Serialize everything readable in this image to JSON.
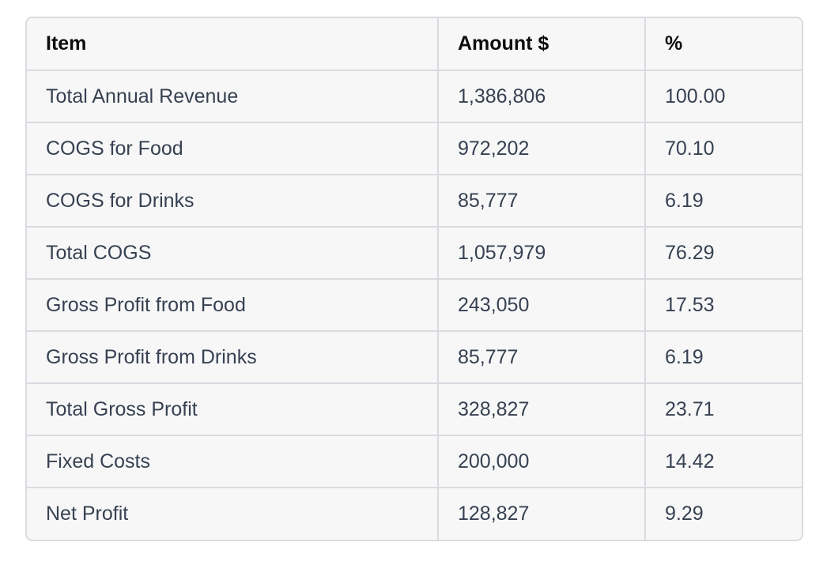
{
  "table": {
    "headers": [
      "Item",
      "Amount $",
      "%"
    ],
    "rows": [
      [
        "Total Annual Revenue",
        "1,386,806",
        "100.00"
      ],
      [
        "COGS for Food",
        "972,202",
        "70.10"
      ],
      [
        "COGS for Drinks",
        "85,777",
        "6.19"
      ],
      [
        "Total COGS",
        "1,057,979",
        "76.29"
      ],
      [
        "Gross Profit from Food",
        "243,050",
        "17.53"
      ],
      [
        "Gross Profit from Drinks",
        "85,777",
        "6.19"
      ],
      [
        "Total Gross Profit",
        "328,827",
        "23.71"
      ],
      [
        "Fixed Costs",
        "200,000",
        "14.42"
      ],
      [
        "Net Profit",
        "128,827",
        "9.29"
      ]
    ]
  },
  "colors": {
    "border": "#d9dbe0",
    "cell_background": "#f7f7f8",
    "header_text": "#0d0d0d",
    "body_text": "#374151"
  }
}
